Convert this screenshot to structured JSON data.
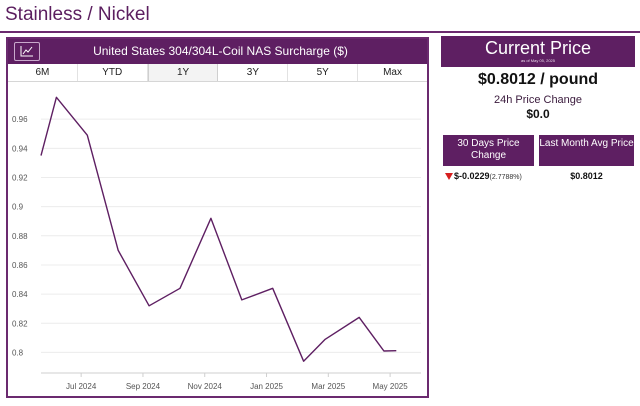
{
  "page": {
    "title": "Stainless / Nickel"
  },
  "chart_panel": {
    "title": "United States 304/304L-Coil NAS Surcharge ($)",
    "chart_icon": "line-chart-icon",
    "tabs": [
      {
        "label": "6M",
        "active": false
      },
      {
        "label": "YTD",
        "active": false
      },
      {
        "label": "1Y",
        "active": true
      },
      {
        "label": "3Y",
        "active": false
      },
      {
        "label": "5Y",
        "active": false
      },
      {
        "label": "Max",
        "active": false
      }
    ]
  },
  "price_panel": {
    "header": "Current Price",
    "as_of": "as of May 05, 2025",
    "current_value": "$0.8012 / pound",
    "change_label": "24h Price Change",
    "change_value": "$0.0",
    "stat_30_label": "30 Days Price Change",
    "stat_30_value": "$-0.0229",
    "stat_30_pct": "(2.7788%)",
    "stat_avg_label": "Last Month Avg Price",
    "stat_avg_value": "$0.8012"
  },
  "colors": {
    "brand": "#5e1f62",
    "line": "#5e1f62",
    "down": "#d61f1f"
  },
  "chart_data": {
    "type": "line",
    "title": "United States 304/304L-Coil NAS Surcharge ($)",
    "xlabel": "",
    "ylabel": "",
    "ylim": [
      0.79,
      0.98
    ],
    "xlim": [
      0,
      12.3
    ],
    "yticks": [
      0.8,
      0.82,
      0.84,
      0.86,
      0.88,
      0.9,
      0.92,
      0.94,
      0.96
    ],
    "xticks": [
      {
        "value": 1.3,
        "label": "Jul 2024"
      },
      {
        "value": 3.3,
        "label": "Sep 2024"
      },
      {
        "value": 5.3,
        "label": "Nov 2024"
      },
      {
        "value": 7.3,
        "label": "Jan 2025"
      },
      {
        "value": 9.3,
        "label": "Mar 2025"
      },
      {
        "value": 11.3,
        "label": "May 2025"
      }
    ],
    "series": [
      {
        "name": "304/304L-Coil NAS Surcharge",
        "x": [
          0,
          0.5,
          1.5,
          2.5,
          3.5,
          4.5,
          5.5,
          6.5,
          7.5,
          8.5,
          9.2,
          10.3,
          11.1,
          11.5
        ],
        "y": [
          0.935,
          0.975,
          0.949,
          0.87,
          0.832,
          0.844,
          0.892,
          0.836,
          0.844,
          0.794,
          0.809,
          0.824,
          0.801,
          0.8012
        ]
      }
    ]
  }
}
